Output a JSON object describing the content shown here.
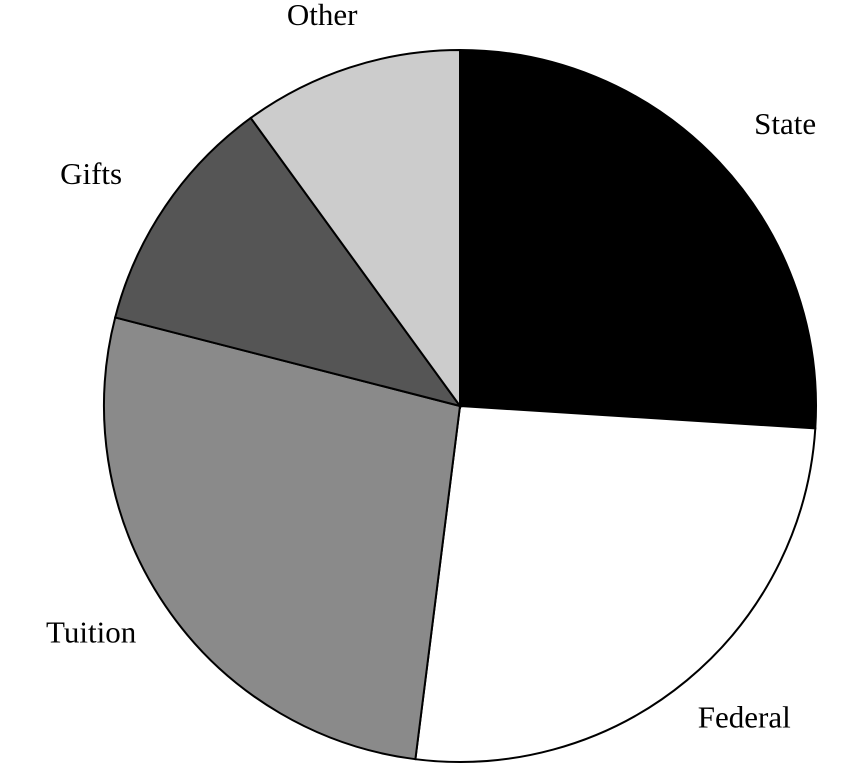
{
  "chart_data": {
    "type": "pie",
    "categories": [
      "State",
      "Federal",
      "Tuition",
      "Gifts",
      "Other"
    ],
    "values": [
      26,
      26,
      27,
      11,
      10
    ],
    "colors": [
      "#000000",
      "#ffffff",
      "#8a8a8a",
      "#555555",
      "#cccccc"
    ]
  }
}
